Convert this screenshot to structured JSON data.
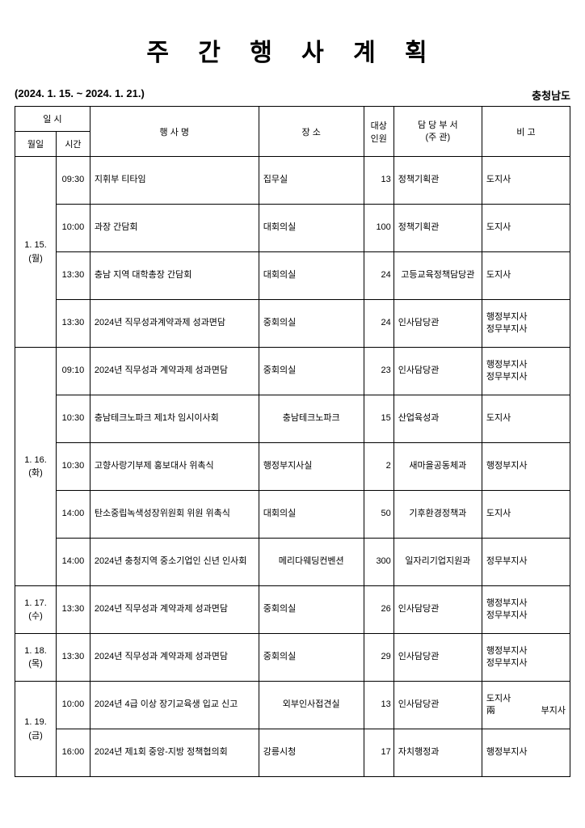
{
  "title": "주 간 행 사 계 획",
  "date_range": "(2024. 1. 15. ~ 2024. 1. 21.)",
  "region": "충청남도",
  "headers": {
    "datetime": "일 시",
    "date": "월일",
    "time": "시간",
    "event": "행 사 명",
    "place": "장 소",
    "count": "대상\n인원",
    "dept1": "담 당 부 서",
    "dept2": "(주 관)",
    "note": "비 고"
  },
  "rows": [
    {
      "date": "1. 15.\n(월)",
      "rowspan": 4,
      "time": "09:30",
      "event": "지휘부 티타임",
      "place": "집무실",
      "place_justify": true,
      "count": "13",
      "dept": "정책기획관",
      "dept_justify": true,
      "note": "도지사",
      "note_justify": true
    },
    {
      "time": "10:00",
      "event": "과장 간담회",
      "place": "대회의실",
      "place_justify": true,
      "count": "100",
      "dept": "정책기획관",
      "dept_justify": true,
      "note": "도지사",
      "note_justify": true
    },
    {
      "time": "13:30",
      "event": "충남 지역 대학총장 간담회",
      "place": "대회의실",
      "place_justify": true,
      "count": "24",
      "dept": "고등교육정책담당관",
      "note": "도지사",
      "note_justify": true
    },
    {
      "time": "13:30",
      "event": "2024년 직무성과계약과제 성과면담",
      "place": "중회의실",
      "place_justify": true,
      "count": "24",
      "dept": "인사담당관",
      "dept_justify": true,
      "note_stack": [
        "행정부지사",
        "정무부지사"
      ]
    },
    {
      "date": "1. 16.\n(화)",
      "rowspan": 5,
      "time": "09:10",
      "event": "2024년 직무성과 계약과제 성과면담",
      "place": "중회의실",
      "place_justify": true,
      "count": "23",
      "dept": "인사담당관",
      "dept_justify": true,
      "note_stack": [
        "행정부지사",
        "정무부지사"
      ]
    },
    {
      "time": "10:30",
      "event": "충남테크노파크 제1차 임시이사회",
      "place": "충남테크노파크",
      "count": "15",
      "dept": "산업육성과",
      "dept_justify": true,
      "note": "도지사",
      "note_justify": true
    },
    {
      "time": "10:30",
      "event": "고향사랑기부제 홍보대사 위촉식",
      "place": "행정부지사실",
      "place_justify": true,
      "count": "2",
      "dept": "새마을공동체과",
      "note": "행정부지사",
      "note_justify": true
    },
    {
      "time": "14:00",
      "event": "탄소중립녹색성장위원회 위원 위촉식",
      "place": "대회의실",
      "place_justify": true,
      "count": "50",
      "dept": "기후환경정책과",
      "note": "도지사",
      "note_justify": true
    },
    {
      "time": "14:00",
      "event": "2024년 충청지역 중소기업인 신년 인사회",
      "place": "메리다웨딩컨벤션",
      "count": "300",
      "dept": "일자리기업지원과",
      "note": "정무부지사",
      "note_justify": true
    },
    {
      "date": "1. 17.\n(수)",
      "rowspan": 1,
      "time": "13:30",
      "event": "2024년 직무성과 계약과제 성과면담",
      "place": "중회의실",
      "place_justify": true,
      "count": "26",
      "dept": "인사담당관",
      "dept_justify": true,
      "note_stack": [
        "행정부지사",
        "정무부지사"
      ]
    },
    {
      "date": "1. 18.\n(목)",
      "rowspan": 1,
      "time": "13:30",
      "event": "2024년 직무성과 계약과제 성과면담",
      "place": "중회의실",
      "place_justify": true,
      "count": "29",
      "dept": "인사담당관",
      "dept_justify": true,
      "note_stack": [
        "행정부지사",
        "정무부지사"
      ]
    },
    {
      "date": "1. 19.\n(금)",
      "rowspan": 2,
      "time": "10:00",
      "event": "2024년 4급 이상 장기교육생 입교 신고",
      "place": "외부인사접견실",
      "count": "13",
      "dept": "인사담당관",
      "dept_justify": true,
      "note_stack": [
        "도지사",
        "兩부지사"
      ]
    },
    {
      "time": "16:00",
      "event": "2024년 제1회 중앙-지방 정책협의회",
      "place": "강릉시청",
      "place_justify": true,
      "count": "17",
      "dept": "자치행정과",
      "dept_justify": true,
      "note": "행정부지사",
      "note_justify": true
    }
  ]
}
